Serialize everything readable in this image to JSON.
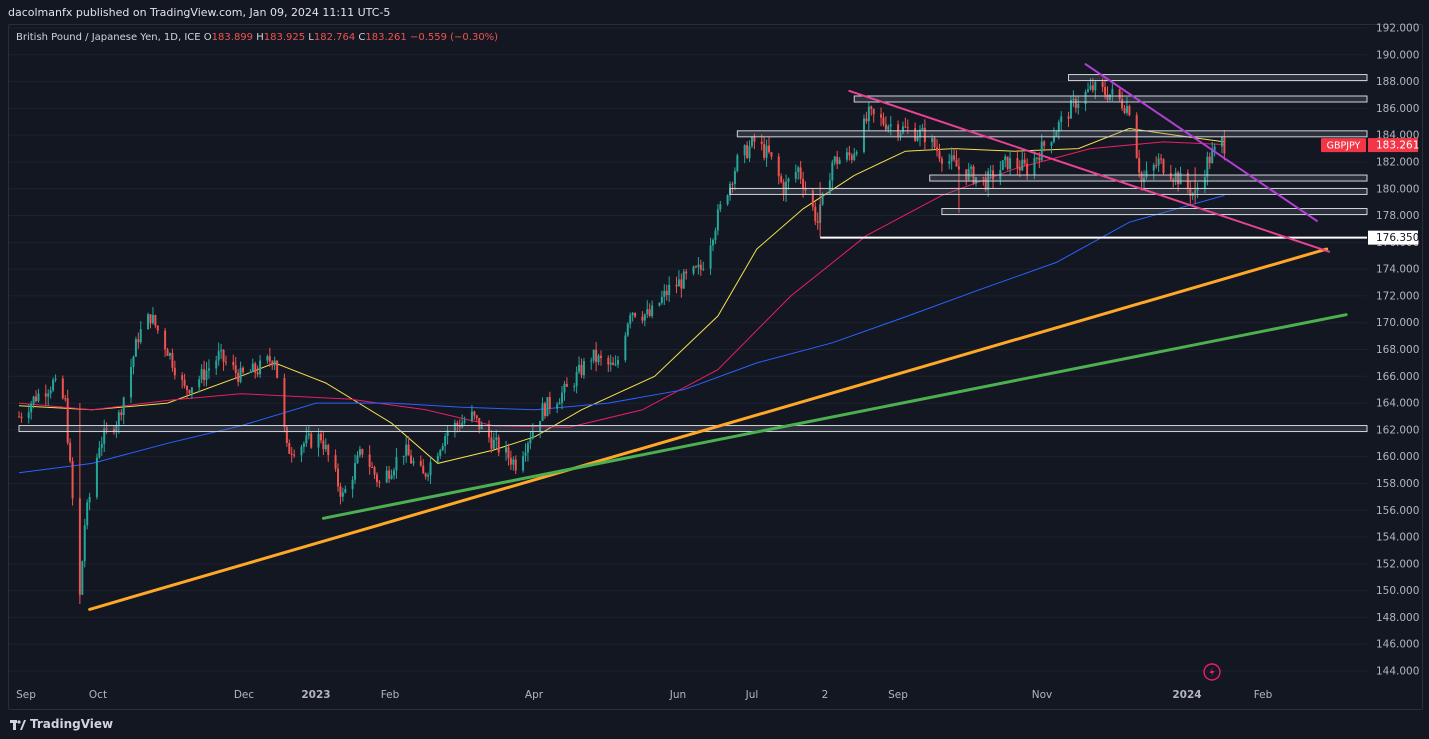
{
  "header": {
    "published": "dacolmanfx published on TradingView.com, Jan 09, 2024 11:11 UTC-5"
  },
  "symbol": {
    "name": "British Pound / Japanese Yen, 1D, ICE",
    "o_label": "O",
    "o": "183.899",
    "h_label": "H",
    "h": "183.925",
    "l_label": "L",
    "l": "182.764",
    "c_label": "C",
    "c": "183.261",
    "change": "−0.559 (−0.30%)"
  },
  "price_tag": {
    "ticker": "GBPJPY",
    "price": "183.261",
    "color": "#f23645"
  },
  "level_tag": {
    "price": "176.350"
  },
  "footer": {
    "brand": "TradingView"
  },
  "colors": {
    "background": "#131722",
    "up": "#26a69a",
    "down": "#ef5350",
    "ma50": "#f5e04a",
    "ma100": "#e91e63",
    "ma200": "#2962ff",
    "support_orange": "#ffa726",
    "support_green": "#4caf50",
    "channel_pink": "#e84393",
    "channel_purple": "#b23ed6"
  },
  "chart_data": {
    "type": "candlestick",
    "y_axis": {
      "range": [
        143,
        192.5
      ],
      "ticks": [
        "192.000",
        "190.000",
        "188.000",
        "186.000",
        "184.000",
        "182.000",
        "180.000",
        "178.000",
        "176.000",
        "174.000",
        "172.000",
        "170.000",
        "168.000",
        "166.000",
        "164.000",
        "162.000",
        "160.000",
        "158.000",
        "156.000",
        "154.000",
        "152.000",
        "150.000",
        "148.000",
        "146.000",
        "144.000"
      ]
    },
    "x_axis": {
      "labels": [
        "Sep",
        "Oct",
        "Dec",
        "2023",
        "Feb",
        "Apr",
        "Jun",
        "Jul",
        "2",
        "Sep",
        "Nov",
        "2024",
        "Feb"
      ],
      "bold": [
        "2023",
        "2024"
      ]
    },
    "close_path": [
      [
        "2022-09-01",
        163.0
      ],
      [
        "2022-09-08",
        164.5
      ],
      [
        "2022-09-15",
        165.5
      ],
      [
        "2022-09-20",
        164.0
      ],
      [
        "2022-09-26",
        149.5
      ],
      [
        "2022-09-28",
        155.0
      ],
      [
        "2022-10-04",
        161.0
      ],
      [
        "2022-10-12",
        163.0
      ],
      [
        "2022-10-20",
        169.0
      ],
      [
        "2022-10-25",
        170.5
      ],
      [
        "2022-11-01",
        168.0
      ],
      [
        "2022-11-08",
        165.0
      ],
      [
        "2022-11-15",
        166.0
      ],
      [
        "2022-11-22",
        167.5
      ],
      [
        "2022-12-01",
        166.0
      ],
      [
        "2022-12-08",
        166.5
      ],
      [
        "2022-12-15",
        167.5
      ],
      [
        "2022-12-20",
        160.5
      ],
      [
        "2023-01-03",
        161.5
      ],
      [
        "2023-01-12",
        157.0
      ],
      [
        "2023-01-20",
        160.5
      ],
      [
        "2023-01-27",
        158.0
      ],
      [
        "2023-02-06",
        160.5
      ],
      [
        "2023-02-14",
        158.5
      ],
      [
        "2023-02-24",
        162.0
      ],
      [
        "2023-03-06",
        163.0
      ],
      [
        "2023-03-15",
        161.0
      ],
      [
        "2023-03-24",
        159.5
      ],
      [
        "2023-04-04",
        163.5
      ],
      [
        "2023-04-14",
        165.0
      ],
      [
        "2023-04-24",
        167.5
      ],
      [
        "2023-05-04",
        166.5
      ],
      [
        "2023-05-10",
        171.0
      ],
      [
        "2023-05-18",
        170.5
      ],
      [
        "2023-05-26",
        172.5
      ],
      [
        "2023-06-08",
        174.0
      ],
      [
        "2023-06-16",
        178.5
      ],
      [
        "2023-06-23",
        182.0
      ],
      [
        "2023-06-30",
        183.5
      ],
      [
        "2023-07-06",
        182.5
      ],
      [
        "2023-07-12",
        180.0
      ],
      [
        "2023-07-18",
        181.5
      ],
      [
        "2023-07-26",
        177.5
      ],
      [
        "2023-08-01",
        182.0
      ],
      [
        "2023-08-09",
        182.5
      ],
      [
        "2023-08-16",
        185.5
      ],
      [
        "2023-08-22",
        185.0
      ],
      [
        "2023-08-29",
        184.5
      ],
      [
        "2023-09-08",
        184.0
      ],
      [
        "2023-09-15",
        182.5
      ],
      [
        "2023-09-22",
        181.5
      ],
      [
        "2023-10-03",
        180.5
      ],
      [
        "2023-10-12",
        182.0
      ],
      [
        "2023-10-20",
        181.5
      ],
      [
        "2023-11-01",
        184.5
      ],
      [
        "2023-11-09",
        186.5
      ],
      [
        "2023-11-16",
        187.5
      ],
      [
        "2023-11-24",
        187.0
      ],
      [
        "2023-12-01",
        186.0
      ],
      [
        "2023-12-06",
        180.5
      ],
      [
        "2023-12-13",
        182.0
      ],
      [
        "2023-12-20",
        181.0
      ],
      [
        "2023-12-28",
        179.5
      ],
      [
        "2024-01-02",
        182.0
      ],
      [
        "2024-01-08",
        183.5
      ],
      [
        "2024-01-09",
        183.261
      ]
    ],
    "moving_averages": {
      "ma50": [
        [
          "2022-09-01",
          163.8
        ],
        [
          "2022-10-01",
          163.5
        ],
        [
          "2022-11-01",
          164.0
        ],
        [
          "2022-12-01",
          166.0
        ],
        [
          "2022-12-15",
          167.0
        ],
        [
          "2023-01-05",
          165.5
        ],
        [
          "2023-02-01",
          162.5
        ],
        [
          "2023-02-20",
          159.5
        ],
        [
          "2023-03-15",
          160.5
        ],
        [
          "2023-04-01",
          161.5
        ],
        [
          "2023-04-20",
          163.5
        ],
        [
          "2023-05-20",
          166.0
        ],
        [
          "2023-06-15",
          170.5
        ],
        [
          "2023-07-01",
          175.5
        ],
        [
          "2023-07-20",
          178.5
        ],
        [
          "2023-08-10",
          181.0
        ],
        [
          "2023-08-31",
          182.8
        ],
        [
          "2023-09-20",
          183.0
        ],
        [
          "2023-10-15",
          182.8
        ],
        [
          "2023-11-10",
          183.0
        ],
        [
          "2023-12-01",
          184.5
        ],
        [
          "2023-12-20",
          184.0
        ],
        [
          "2024-01-09",
          183.5
        ]
      ],
      "ma100": [
        [
          "2022-09-01",
          164.0
        ],
        [
          "2022-10-01",
          163.5
        ],
        [
          "2022-11-01",
          164.2
        ],
        [
          "2022-12-01",
          164.7
        ],
        [
          "2023-01-15",
          164.3
        ],
        [
          "2023-02-15",
          163.5
        ],
        [
          "2023-03-15",
          162.3
        ],
        [
          "2023-04-15",
          162.2
        ],
        [
          "2023-05-15",
          163.5
        ],
        [
          "2023-06-15",
          166.5
        ],
        [
          "2023-07-15",
          172.0
        ],
        [
          "2023-08-15",
          176.5
        ],
        [
          "2023-09-15",
          179.5
        ],
        [
          "2023-10-15",
          181.5
        ],
        [
          "2023-11-15",
          183.0
        ],
        [
          "2023-12-15",
          183.5
        ],
        [
          "2024-01-09",
          183.3
        ]
      ],
      "ma200": [
        [
          "2022-09-01",
          158.8
        ],
        [
          "2022-10-01",
          159.5
        ],
        [
          "2022-11-01",
          161.0
        ],
        [
          "2022-12-01",
          162.3
        ],
        [
          "2023-01-01",
          164.0
        ],
        [
          "2023-02-01",
          164.0
        ],
        [
          "2023-03-01",
          163.7
        ],
        [
          "2023-04-01",
          163.5
        ],
        [
          "2023-05-01",
          164.0
        ],
        [
          "2023-06-01",
          165.0
        ],
        [
          "2023-07-01",
          167.0
        ],
        [
          "2023-08-01",
          168.5
        ],
        [
          "2023-09-01",
          170.5
        ],
        [
          "2023-10-01",
          172.5
        ],
        [
          "2023-11-01",
          174.5
        ],
        [
          "2023-12-01",
          177.5
        ],
        [
          "2024-01-09",
          179.5
        ]
      ]
    },
    "horizontal_levels": [
      {
        "price": 188.3,
        "from": "2023-11-06",
        "to": "2024-01-09"
      },
      {
        "price": 186.7,
        "from": "2023-08-10",
        "to": "2024-01-09"
      },
      {
        "price": 184.1,
        "from": "2023-06-23",
        "to": "2024-01-09"
      },
      {
        "price": 180.8,
        "from": "2023-09-10",
        "to": "2024-01-09"
      },
      {
        "price": 179.8,
        "from": "2023-06-20",
        "to": "2024-01-09"
      },
      {
        "price": 178.3,
        "from": "2023-09-15",
        "to": "2024-01-09"
      },
      {
        "price": 176.35,
        "from": "2023-07-27",
        "to": "2024-01-09"
      },
      {
        "price": 162.1,
        "from": "2022-09-01",
        "to": "2024-01-09"
      }
    ],
    "trendlines": [
      {
        "name": "orange",
        "from": [
          "2022-09-30",
          148.6
        ],
        "to": [
          "2024-02-20",
          175.5
        ]
      },
      {
        "name": "green",
        "from": [
          "2023-01-04",
          155.4
        ],
        "to": [
          "2024-02-28",
          170.6
        ]
      },
      {
        "name": "pink",
        "from": [
          "2023-08-08",
          187.3
        ],
        "to": [
          "2024-02-21",
          175.3
        ]
      },
      {
        "name": "purple",
        "from": [
          "2023-11-13",
          189.3
        ],
        "to": [
          "2024-02-16",
          177.6
        ]
      }
    ]
  }
}
